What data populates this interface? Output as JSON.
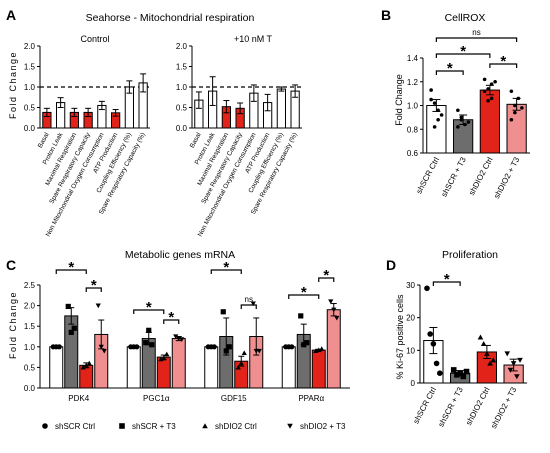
{
  "panels": [
    {
      "letter": "A",
      "title": "Seahorse - Mitochondrial respiration"
    },
    {
      "letter": "B",
      "title": "CellROX"
    },
    {
      "letter": "C",
      "title": "Metabolic genes mRNA"
    },
    {
      "letter": "D",
      "title": "Proliferation"
    }
  ],
  "colors": {
    "white": "#ffffff",
    "red": "#e2231a",
    "dark_gray": "#6d6d6d",
    "pink": "#f08f8f",
    "light_gray": "#b5b5b5"
  },
  "chart_data": [
    {
      "id": "A1",
      "type": "bar",
      "title": "Control",
      "ylabel": "Fold Change",
      "ylim": [
        0,
        2.0
      ],
      "yticks": [
        0,
        0.5,
        1.0,
        1.5,
        2.0
      ],
      "reference_line": 1.0,
      "categories": [
        "Basal",
        "Proton Leak",
        "Maximal Respiration",
        "Spare Respiratory Capacity",
        "Non Mitochondrial Oxygen Consumption",
        "ATP Production",
        "Coupling Efficiency (%)",
        "Spare Respiratory Capacity (%)"
      ],
      "bar_colors": [
        "red",
        "white",
        "red",
        "red",
        "white",
        "red",
        "white",
        "white"
      ],
      "values": [
        0.38,
        0.62,
        0.38,
        0.38,
        0.55,
        0.37,
        1.0,
        1.1
      ],
      "errors": [
        0.1,
        0.12,
        0.1,
        0.1,
        0.1,
        0.08,
        0.15,
        0.22
      ]
    },
    {
      "id": "A2",
      "type": "bar",
      "title": "+10 nM T",
      "ylim": [
        0,
        2.0
      ],
      "yticks": [
        0,
        0.5,
        1.0,
        1.5,
        2.0
      ],
      "reference_line": 1.0,
      "categories": [
        "Basal",
        "Proton Leak",
        "Maximal Respiration",
        "Spare Respiratory Capacity",
        "Non Mitochondrial Oxygen Consumption",
        "ATP Production",
        "Coupling Efficiency (%)",
        "Spare Respiratory Capacity (%)"
      ],
      "bar_colors": [
        "white",
        "white",
        "red",
        "red",
        "white",
        "white",
        "white",
        "white"
      ],
      "values": [
        0.68,
        0.9,
        0.52,
        0.48,
        0.85,
        0.62,
        0.95,
        0.9
      ],
      "errors": [
        0.2,
        0.35,
        0.15,
        0.13,
        0.2,
        0.2,
        0.05,
        0.15
      ]
    },
    {
      "id": "B",
      "type": "bar",
      "ylabel": "Fold Change",
      "ylim": [
        0.6,
        1.4
      ],
      "yticks": [
        0.6,
        0.8,
        1.0,
        1.2,
        1.4
      ],
      "categories": [
        "shSCR Ctrl",
        "shSCR + T3",
        "shDIO2 Ctrl",
        "shDIO2 + T3"
      ],
      "bar_colors": [
        "white",
        "dark_gray",
        "red",
        "pink"
      ],
      "values": [
        1.0,
        0.88,
        1.13,
        1.01
      ],
      "errors": [
        0.05,
        0.04,
        0.04,
        0.05
      ],
      "points": [
        [
          1.13,
          1.02,
          0.96,
          0.92,
          1.05,
          0.82,
          0.88
        ],
        [
          0.96,
          0.88,
          0.84,
          0.86,
          0.82,
          0.9
        ],
        [
          1.22,
          1.14,
          1.06,
          1.2,
          1.12,
          1.04,
          1.18
        ],
        [
          1.12,
          0.94,
          1.06,
          0.98,
          0.88,
          1.0
        ]
      ],
      "significance": [
        {
          "from": 0,
          "to": 1,
          "label": "*"
        },
        {
          "from": 0,
          "to": 2,
          "label": "*"
        },
        {
          "from": 0,
          "to": 3,
          "label": "ns"
        },
        {
          "from": 2,
          "to": 3,
          "label": "*"
        }
      ]
    },
    {
      "id": "C",
      "type": "bar",
      "ylabel": "Fold Change",
      "ylim": [
        0,
        2.5
      ],
      "yticks": [
        0,
        0.5,
        1.0,
        1.5,
        2.0,
        2.5
      ],
      "categories": [
        "PDK4",
        "PGC1α",
        "GDF15",
        "PPARα"
      ],
      "series": [
        {
          "name": "shSCR Ctrl",
          "marker": "circle",
          "color": "white",
          "values": [
            1.0,
            1.0,
            1.0,
            1.0
          ],
          "errors": [
            0.0,
            0.0,
            0.0,
            0.0
          ]
        },
        {
          "name": "shSCR + T3",
          "marker": "square",
          "color": "dark_gray",
          "values": [
            1.75,
            1.2,
            1.25,
            1.3
          ],
          "errors": [
            0.2,
            0.15,
            0.45,
            0.25
          ]
        },
        {
          "name": "shDIO2 Ctrl",
          "marker": "triangle-up",
          "color": "red",
          "values": [
            0.55,
            0.75,
            0.65,
            0.92
          ],
          "errors": [
            0.06,
            0.05,
            0.12,
            0.02
          ]
        },
        {
          "name": "shDIO2 + T3",
          "marker": "triangle-down",
          "color": "pink",
          "values": [
            1.3,
            1.2,
            1.25,
            1.9
          ],
          "errors": [
            0.35,
            0.05,
            0.45,
            0.15
          ]
        }
      ],
      "points": [
        [
          [
            1.0,
            1.0,
            1.0
          ],
          [
            1.98,
            1.35,
            1.45
          ],
          [
            0.5,
            0.55,
            0.6
          ],
          [
            2.0,
            1.0,
            0.9
          ]
        ],
        [
          [
            1.0,
            1.0,
            1.0
          ],
          [
            1.1,
            1.4,
            1.05
          ],
          [
            0.7,
            0.72,
            0.82
          ],
          [
            1.25,
            1.2,
            1.18
          ]
        ],
        [
          [
            1.0,
            1.0,
            1.0
          ],
          [
            1.85,
            0.9,
            1.0
          ],
          [
            0.5,
            0.6,
            0.85
          ],
          [
            2.05,
            0.9,
            0.9
          ]
        ],
        [
          [
            1.0,
            1.0,
            1.0
          ],
          [
            1.75,
            1.05,
            1.1
          ],
          [
            0.9,
            0.92,
            0.95
          ],
          [
            2.1,
            1.9,
            1.7
          ]
        ]
      ],
      "significance": [
        {
          "group": 0,
          "from": 0,
          "to": 2,
          "label": "*"
        },
        {
          "group": 0,
          "from": 2,
          "to": 3,
          "label": "*"
        },
        {
          "group": 1,
          "from": 0,
          "to": 2,
          "label": "*"
        },
        {
          "group": 1,
          "from": 2,
          "to": 3,
          "label": "*"
        },
        {
          "group": 2,
          "from": 0,
          "to": 2,
          "label": "*"
        },
        {
          "group": 2,
          "from": 2,
          "to": 3,
          "label": "ns"
        },
        {
          "group": 3,
          "from": 0,
          "to": 2,
          "label": "*"
        },
        {
          "group": 3,
          "from": 2,
          "to": 3,
          "label": "*"
        }
      ],
      "legend_placement": "bottom"
    },
    {
      "id": "D",
      "type": "bar",
      "ylabel": "% Ki-67 positive cells",
      "ylim": [
        0,
        30
      ],
      "yticks": [
        0,
        10,
        20,
        30
      ],
      "categories": [
        "shSCR Ctrl",
        "shSCR + T3",
        "shDIO2 Ctrl",
        "shDIO2 + T3"
      ],
      "bar_colors": [
        "white",
        "dark_gray",
        "red",
        "pink"
      ],
      "values": [
        13,
        3,
        9.5,
        5.5
      ],
      "errors": [
        4.0,
        0.8,
        2.0,
        1.8
      ],
      "points": [
        [
          29,
          15,
          12,
          6,
          3
        ],
        [
          4,
          2.5,
          3,
          2,
          3.5
        ],
        [
          14,
          12,
          9,
          6,
          7
        ],
        [
          9,
          4,
          6,
          2,
          7
        ]
      ],
      "markers": [
        "circle",
        "square",
        "triangle-up",
        "triangle-down"
      ],
      "significance": [
        {
          "from": 0,
          "to": 1,
          "label": "*"
        }
      ]
    }
  ]
}
